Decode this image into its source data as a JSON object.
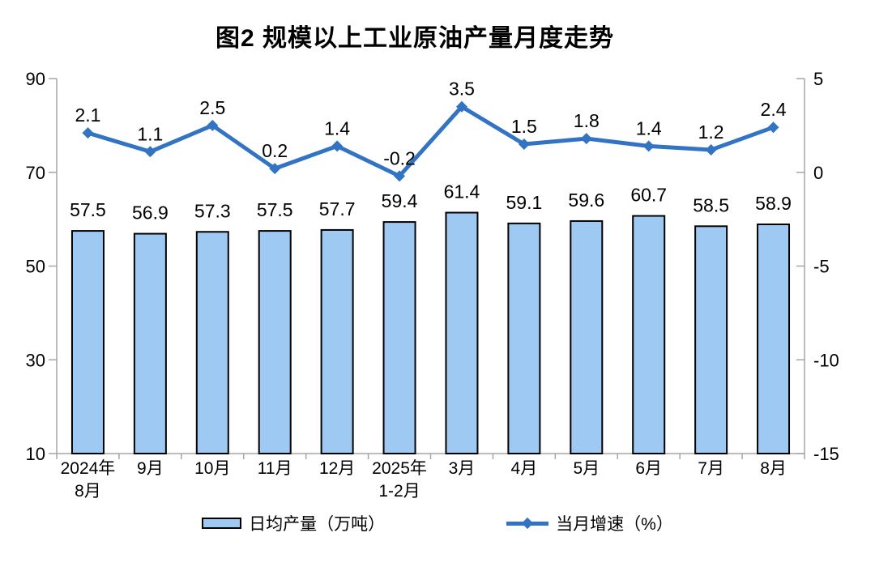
{
  "title": "图2 规模以上工业原油产量月度走势",
  "chart_data": {
    "type": "combo-bar-line",
    "title": "图2 规模以上工业原油产量月度走势",
    "categories": [
      "2024年\n8月",
      "9月",
      "10月",
      "11月",
      "12月",
      "2025年\n1-2月",
      "3月",
      "4月",
      "5月",
      "6月",
      "7月",
      "8月"
    ],
    "series": [
      {
        "name": "日均产量（万吨）",
        "type": "bar",
        "axis": "left",
        "values": [
          57.5,
          56.9,
          57.3,
          57.5,
          57.7,
          59.4,
          61.4,
          59.1,
          59.6,
          60.7,
          58.5,
          58.9
        ],
        "fill": "#9DC9F3",
        "stroke": "#000000"
      },
      {
        "name": "当月增速（%）",
        "type": "line",
        "axis": "right",
        "values": [
          2.1,
          1.1,
          2.5,
          0.2,
          1.4,
          -0.2,
          3.5,
          1.5,
          1.8,
          1.4,
          1.2,
          2.4
        ],
        "color": "#3273C4",
        "marker": "diamond"
      }
    ],
    "left_axis": {
      "min": 10,
      "max": 90,
      "ticks": [
        90,
        70,
        50,
        30,
        10
      ]
    },
    "right_axis": {
      "min": -15,
      "max": 5,
      "ticks": [
        5,
        0,
        -5,
        -10,
        -15
      ]
    },
    "grid": false,
    "legend_position": "bottom",
    "axis_color": "#A6A6A6",
    "text_color": "#000000",
    "background": "#FFFFFF"
  }
}
